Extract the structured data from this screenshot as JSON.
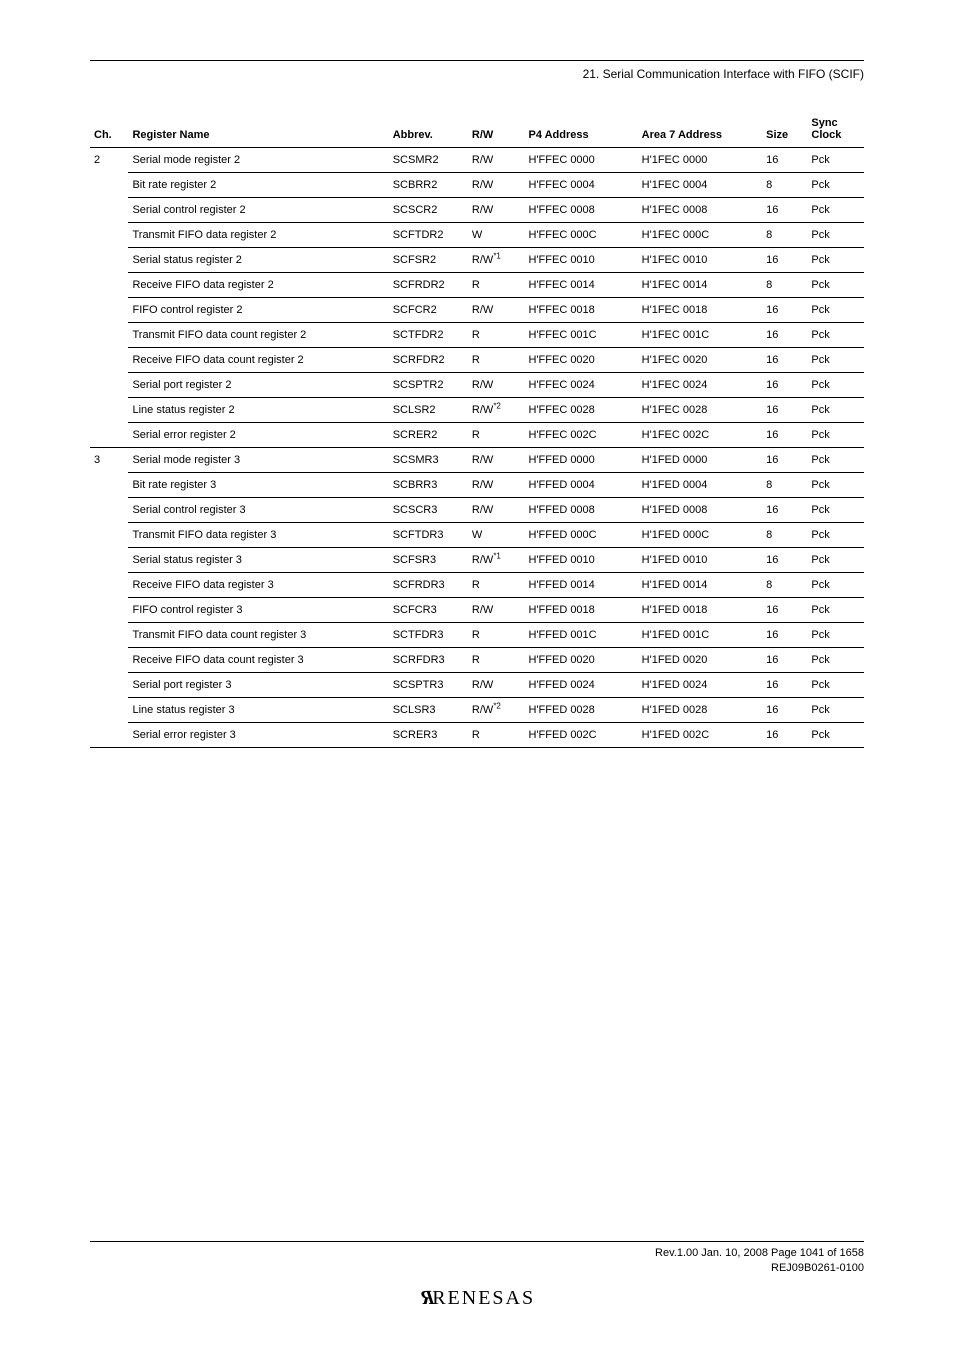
{
  "section_header": "21.   Serial Communication Interface with FIFO (SCIF)",
  "table": {
    "columns": [
      "Ch.",
      "Register Name",
      "Abbrev.",
      "R/W",
      "P4 Address",
      "Area 7 Address",
      "Size",
      "Sync Clock"
    ],
    "groups": [
      {
        "ch": "2",
        "rows": [
          {
            "name": "Serial mode register 2",
            "abbrev": "SCSMR2",
            "rw": "R/W",
            "p4": "H'FFEC 0000",
            "a7": "H'1FEC 0000",
            "size": "16",
            "clock": "Pck"
          },
          {
            "name": "Bit rate register 2",
            "abbrev": "SCBRR2",
            "rw": "R/W",
            "p4": "H'FFEC 0004",
            "a7": "H'1FEC 0004",
            "size": "8",
            "clock": "Pck"
          },
          {
            "name": "Serial control register 2",
            "abbrev": "SCSCR2",
            "rw": "R/W",
            "p4": "H'FFEC 0008",
            "a7": "H'1FEC 0008",
            "size": "16",
            "clock": "Pck"
          },
          {
            "name": "Transmit FIFO data register 2",
            "abbrev": "SCFTDR2",
            "rw": "W",
            "p4": "H'FFEC 000C",
            "a7": "H'1FEC 000C",
            "size": "8",
            "clock": "Pck"
          },
          {
            "name": "Serial status register 2",
            "abbrev": "SCFSR2",
            "rw": "R/W",
            "rw_sup": "*1",
            "p4": "H'FFEC 0010",
            "a7": "H'1FEC 0010",
            "size": "16",
            "clock": "Pck"
          },
          {
            "name": "Receive FIFO data register 2",
            "abbrev": "SCFRDR2",
            "rw": "R",
            "p4": "H'FFEC 0014",
            "a7": "H'1FEC 0014",
            "size": "8",
            "clock": "Pck"
          },
          {
            "name": "FIFO control register 2",
            "abbrev": "SCFCR2",
            "rw": "R/W",
            "p4": "H'FFEC 0018",
            "a7": "H'1FEC 0018",
            "size": "16",
            "clock": "Pck"
          },
          {
            "name": "Transmit FIFO data count register 2",
            "abbrev": "SCTFDR2",
            "rw": "R",
            "p4": "H'FFEC 001C",
            "a7": "H'1FEC 001C",
            "size": "16",
            "clock": "Pck"
          },
          {
            "name": "Receive FIFO data count register 2",
            "abbrev": "SCRFDR2",
            "rw": "R",
            "p4": "H'FFEC 0020",
            "a7": "H'1FEC 0020",
            "size": "16",
            "clock": "Pck"
          },
          {
            "name": "Serial port register 2",
            "abbrev": "SCSPTR2",
            "rw": "R/W",
            "p4": "H'FFEC 0024",
            "a7": "H'1FEC 0024",
            "size": "16",
            "clock": "Pck"
          },
          {
            "name": "Line status register 2",
            "abbrev": "SCLSR2",
            "rw": "R/W",
            "rw_sup": "*2",
            "p4": "H'FFEC 0028",
            "a7": "H'1FEC 0028",
            "size": "16",
            "clock": "Pck"
          },
          {
            "name": "Serial error register 2",
            "abbrev": "SCRER2",
            "rw": "R",
            "p4": "H'FFEC 002C",
            "a7": "H'1FEC 002C",
            "size": "16",
            "clock": "Pck"
          }
        ]
      },
      {
        "ch": "3",
        "rows": [
          {
            "name": "Serial mode register 3",
            "abbrev": "SCSMR3",
            "rw": "R/W",
            "p4": "H'FFED 0000",
            "a7": "H'1FED 0000",
            "size": "16",
            "clock": "Pck"
          },
          {
            "name": "Bit rate register 3",
            "abbrev": "SCBRR3",
            "rw": "R/W",
            "p4": "H'FFED 0004",
            "a7": "H'1FED 0004",
            "size": "8",
            "clock": "Pck"
          },
          {
            "name": "Serial control register 3",
            "abbrev": "SCSCR3",
            "rw": "R/W",
            "p4": "H'FFED 0008",
            "a7": "H'1FED 0008",
            "size": "16",
            "clock": "Pck"
          },
          {
            "name": "Transmit FIFO data register 3",
            "abbrev": "SCFTDR3",
            "rw": "W",
            "p4": "H'FFED 000C",
            "a7": "H'1FED 000C",
            "size": "8",
            "clock": "Pck"
          },
          {
            "name": "Serial status register 3",
            "abbrev": "SCFSR3",
            "rw": "R/W",
            "rw_sup": "*1",
            "p4": "H'FFED 0010",
            "a7": "H'1FED 0010",
            "size": "16",
            "clock": "Pck"
          },
          {
            "name": "Receive FIFO data register 3",
            "abbrev": "SCFRDR3",
            "rw": "R",
            "p4": "H'FFED 0014",
            "a7": "H'1FED 0014",
            "size": "8",
            "clock": "Pck"
          },
          {
            "name": "FIFO control register 3",
            "abbrev": "SCFCR3",
            "rw": "R/W",
            "p4": "H'FFED 0018",
            "a7": "H'1FED 0018",
            "size": "16",
            "clock": "Pck"
          },
          {
            "name": "Transmit FIFO data count register 3",
            "abbrev": "SCTFDR3",
            "rw": "R",
            "p4": "H'FFED 001C",
            "a7": "H'1FED 001C",
            "size": "16",
            "clock": "Pck"
          },
          {
            "name": "Receive FIFO data count register 3",
            "abbrev": "SCRFDR3",
            "rw": "R",
            "p4": "H'FFED 0020",
            "a7": "H'1FED 0020",
            "size": "16",
            "clock": "Pck"
          },
          {
            "name": "Serial port register 3",
            "abbrev": "SCSPTR3",
            "rw": "R/W",
            "p4": "H'FFED 0024",
            "a7": "H'1FED 0024",
            "size": "16",
            "clock": "Pck"
          },
          {
            "name": "Line status register 3",
            "abbrev": "SCLSR3",
            "rw": "R/W",
            "rw_sup": "*2",
            "p4": "H'FFED 0028",
            "a7": "H'1FED 0028",
            "size": "16",
            "clock": "Pck"
          },
          {
            "name": "Serial error register 3",
            "abbrev": "SCRER3",
            "rw": "R",
            "p4": "H'FFED 002C",
            "a7": "H'1FED 002C",
            "size": "16",
            "clock": "Pck"
          }
        ]
      }
    ]
  },
  "footer": {
    "line1": "Rev.1.00  Jan. 10, 2008  Page 1041 of 1658",
    "line2": "REJ09B0261-0100",
    "logo": "RENESAS"
  }
}
